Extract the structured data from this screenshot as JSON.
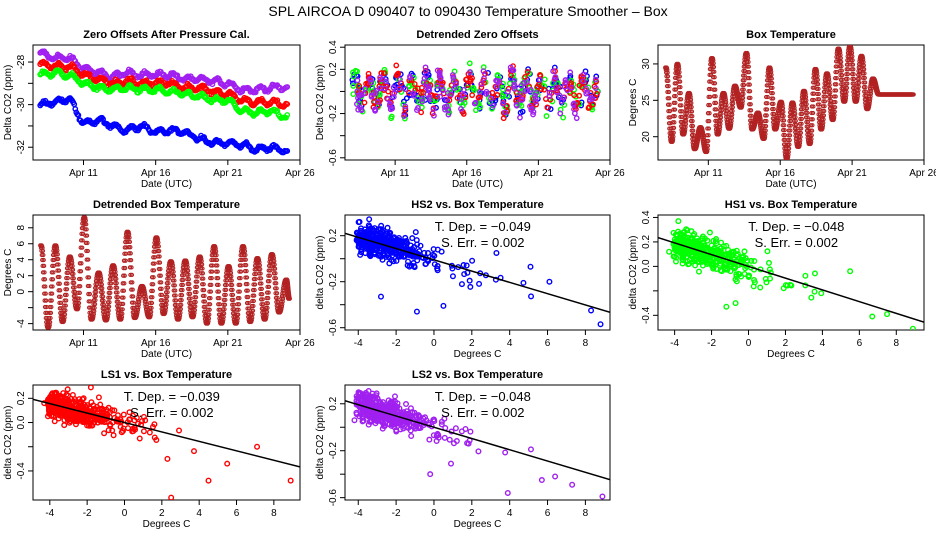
{
  "main_title": "SPL   AIRCOA D   090407 to 090430   Temperature Smoother – Box",
  "colors": {
    "HS2": "#0000ff",
    "HS1": "#00ff00",
    "LS1": "#ff0000",
    "LS2": "#a020f0",
    "box": "#b22222",
    "fit": "#000000"
  },
  "chart_data": [
    {
      "id": "zero-offsets",
      "type": "scatter",
      "title": "Zero Offsets After Pressure Cal.",
      "xlabel": "Date (UTC)",
      "ylabel": "Delta CO2 (ppm)",
      "xlim": [
        7.5,
        26
      ],
      "ylim": [
        -32.6,
        -27.2
      ],
      "xticks": [
        11,
        16,
        21,
        26
      ],
      "xtick_labels": [
        "Apr 11",
        "Apr 16",
        "Apr 21",
        "Apr 26"
      ],
      "yticks": [
        -32,
        -31,
        -30,
        -29,
        -28
      ],
      "ytick_labels": [
        "-32",
        "",
        "-30",
        "",
        "-28"
      ],
      "series": [
        {
          "name": "LS2",
          "color_key": "LS2",
          "x": [
            8,
            9,
            10,
            11,
            12,
            13,
            14,
            15,
            16,
            17,
            18,
            19,
            20,
            21,
            22,
            23,
            24,
            25.2
          ],
          "y": [
            -27.6,
            -27.8,
            -27.8,
            -28.3,
            -28.5,
            -28.7,
            -28.5,
            -28.6,
            -28.6,
            -28.6,
            -28.8,
            -28.8,
            -28.9,
            -29.0,
            -29.3,
            -29.3,
            -29.2,
            -29.2
          ]
        },
        {
          "name": "LS1",
          "color_key": "LS1",
          "x": [
            8,
            9,
            10,
            11,
            12,
            13,
            14,
            15,
            16,
            17,
            18,
            19,
            20,
            21,
            22,
            23,
            24,
            25.2
          ],
          "y": [
            -28.1,
            -28.2,
            -28.2,
            -28.6,
            -28.8,
            -29.0,
            -28.9,
            -29.0,
            -29.0,
            -29.0,
            -29.2,
            -29.2,
            -29.4,
            -29.5,
            -29.8,
            -29.9,
            -29.9,
            -30.0
          ]
        },
        {
          "name": "HS1",
          "color_key": "HS1",
          "x": [
            8,
            9,
            10,
            11,
            12,
            13,
            14,
            15,
            16,
            17,
            18,
            19,
            20,
            21,
            22,
            23,
            24,
            25.2
          ],
          "y": [
            -28.6,
            -28.5,
            -28.6,
            -29.0,
            -29.2,
            -29.3,
            -29.2,
            -29.3,
            -29.3,
            -29.4,
            -29.5,
            -29.6,
            -29.8,
            -29.8,
            -30.3,
            -30.4,
            -30.3,
            -30.6
          ]
        },
        {
          "name": "HS2",
          "color_key": "HS2",
          "x": [
            8,
            9,
            10,
            11,
            12,
            13,
            14,
            15,
            16,
            17,
            18,
            19,
            20,
            21,
            22,
            23,
            24,
            25.2
          ],
          "y": [
            -30.0,
            -29.9,
            -29.7,
            -30.9,
            -30.7,
            -31.0,
            -31.2,
            -31.0,
            -31.3,
            -31.2,
            -31.3,
            -31.6,
            -31.8,
            -31.8,
            -31.9,
            -32.1,
            -32.0,
            -32.2
          ]
        }
      ]
    },
    {
      "id": "detrended-zero-offsets",
      "type": "scatter",
      "title": "Detrended Zero Offsets",
      "xlabel": "Date (UTC)",
      "ylabel": "Delta CO2 (ppm)",
      "xlim": [
        7.5,
        26
      ],
      "ylim": [
        -0.62,
        0.42
      ],
      "xticks": [
        11,
        16,
        21,
        26
      ],
      "xtick_labels": [
        "Apr 11",
        "Apr 16",
        "Apr 21",
        "Apr 26"
      ],
      "yticks": [
        -0.6,
        -0.4,
        -0.2,
        0.0,
        0.2,
        0.4
      ],
      "ytick_labels": [
        "-0.6",
        "",
        "-0.2",
        "",
        "0.2",
        "0.4"
      ],
      "series": [
        {
          "name": "HS2",
          "color_key": "HS2",
          "range": [
            -0.4,
            0.3
          ]
        },
        {
          "name": "HS1",
          "color_key": "HS1",
          "range": [
            -0.45,
            0.38
          ]
        },
        {
          "name": "LS1",
          "color_key": "LS1",
          "range": [
            -0.5,
            0.3
          ]
        },
        {
          "name": "LS2",
          "color_key": "LS2",
          "range": [
            -0.57,
            0.34
          ]
        }
      ]
    },
    {
      "id": "box-temperature",
      "type": "line",
      "title": "Box Temperature",
      "xlabel": "Date (UTC)",
      "ylabel": "Degrees C",
      "xlim": [
        7.5,
        26
      ],
      "ylim": [
        16.8,
        32.6
      ],
      "xticks": [
        11,
        16,
        21,
        26
      ],
      "xtick_labels": [
        "Apr 11",
        "Apr 16",
        "Apr 21",
        "Apr 26"
      ],
      "yticks": [
        20,
        25,
        30
      ],
      "ytick_labels": [
        "20",
        "25",
        "30"
      ],
      "series": [
        {
          "name": "Box",
          "color_key": "box",
          "x": [
            8,
            8.4,
            8.8,
            9.2,
            9.6,
            10,
            10.4,
            10.8,
            11.2,
            11.6,
            12,
            12.4,
            12.8,
            13.2,
            13.6,
            14,
            14.4,
            14.8,
            15.2,
            15.6,
            16,
            16.4,
            16.8,
            17.2,
            17.6,
            18,
            18.4,
            18.8,
            19.2,
            19.6,
            20,
            20.4,
            20.8,
            21.2,
            21.6,
            22,
            22.4,
            22.8,
            23.2,
            23.6,
            24,
            24.4,
            24.8,
            25.2
          ],
          "y": [
            29.5,
            19.3,
            30.0,
            20.3,
            26.0,
            18.3,
            21.3,
            17.9,
            30.8,
            20.3,
            26.0,
            21.1,
            27.0,
            24.0,
            31.5,
            21.0,
            23.3,
            19.7,
            29.5,
            21.0,
            24.8,
            17.0,
            24.7,
            18.6,
            26.3,
            19.0,
            29.3,
            21.0,
            28.7,
            22.3,
            32.1,
            24.8,
            32.4,
            24.8,
            31.1,
            23.8,
            28.0,
            25.8,
            25.8,
            25.8,
            25.8,
            25.8,
            25.8,
            25.8
          ]
        }
      ]
    },
    {
      "id": "detrended-box-temperature",
      "type": "line",
      "title": "Detrended Box Temperature",
      "xlabel": "Date (UTC)",
      "ylabel": "Degrees C",
      "xlim": [
        7.5,
        26
      ],
      "ylim": [
        -4.8,
        9.6
      ],
      "xticks": [
        11,
        16,
        21,
        26
      ],
      "xtick_labels": [
        "Apr 11",
        "Apr 16",
        "Apr 21",
        "Apr 26"
      ],
      "yticks": [
        -4,
        -2,
        0,
        2,
        4,
        6,
        8
      ],
      "ytick_labels": [
        "-4",
        "",
        "0",
        "2",
        "4",
        "6",
        "8"
      ],
      "series": [
        {
          "name": "Box",
          "color_key": "box",
          "x": [
            8,
            8.5,
            9,
            9.5,
            10,
            10.5,
            11,
            11.5,
            12,
            12.5,
            13,
            13.5,
            14,
            14.5,
            15,
            15.5,
            16,
            16.5,
            17,
            17.5,
            18,
            18.5,
            19,
            19.5,
            20,
            20.5,
            21,
            21.5,
            22,
            22.5,
            23,
            23.5,
            24,
            24.5,
            25,
            25.2
          ],
          "y": [
            5.8,
            -4.5,
            5.8,
            -3.8,
            4.4,
            -2.2,
            9.3,
            -3.5,
            2.4,
            -3.6,
            3.3,
            -3.5,
            7.5,
            -3.3,
            0.7,
            -3.2,
            6.8,
            -2.8,
            3.8,
            -3.5,
            3.9,
            -3.2,
            4.4,
            -4.0,
            5.7,
            -4.0,
            3.2,
            -4.0,
            5.7,
            -3.8,
            4.2,
            -3.5,
            4.7,
            -2.6,
            1.5,
            -0.9
          ]
        }
      ]
    },
    {
      "id": "hs2-vs-box",
      "type": "scatter",
      "title": "HS2 vs. Box Temperature",
      "xlabel": "Degrees C",
      "ylabel": "delta CO2 (ppm)",
      "xlim": [
        -4.7,
        9.3
      ],
      "ylim": [
        -0.62,
        0.38
      ],
      "xticks": [
        -4,
        -2,
        0,
        2,
        4,
        6,
        8
      ],
      "xtick_labels": [
        "-4",
        "-2",
        "0",
        "2",
        "4",
        "6",
        "8"
      ],
      "yticks": [
        -0.6,
        -0.4,
        -0.2,
        0.0,
        0.2
      ],
      "ytick_labels": [
        "-0.6",
        "",
        "-0.2",
        "",
        "0.2"
      ],
      "color_key": "HS2",
      "fit": {
        "slope": -0.049,
        "intercept": -0.01
      },
      "annotation": [
        "T. Dep. =  −0.049",
        "S. Err. =  0.002"
      ],
      "spread": 0.09,
      "outliers": [
        [
          -2.8,
          -0.33
        ],
        [
          -0.9,
          -0.46
        ],
        [
          0.5,
          -0.41
        ],
        [
          8.3,
          -0.45
        ],
        [
          8.8,
          -0.57
        ],
        [
          6.1,
          -0.2
        ],
        [
          5.1,
          -0.07
        ],
        [
          3.3,
          0.05
        ]
      ]
    },
    {
      "id": "hs1-vs-box",
      "type": "scatter",
      "title": "HS1 vs. Box Temperature",
      "xlabel": "Degrees C",
      "ylabel": "delta CO2 (ppm)",
      "xlim": [
        -4.9,
        9.5
      ],
      "ylim": [
        -0.52,
        0.42
      ],
      "xticks": [
        -4,
        -2,
        0,
        2,
        4,
        6,
        8
      ],
      "xtick_labels": [
        "-4",
        "-2",
        "0",
        "2",
        "4",
        "6",
        "8"
      ],
      "yticks": [
        -0.4,
        -0.2,
        0.0,
        0.2,
        0.4
      ],
      "ytick_labels": [
        "-0.4",
        "",
        "0.0",
        "0.2",
        "0.4"
      ],
      "color_key": "HS1",
      "fit": {
        "slope": -0.048,
        "intercept": 0.0
      },
      "annotation": [
        "T. Dep. =  −0.048",
        "S. Err. =  0.002"
      ],
      "spread": 0.09,
      "outliers": [
        [
          -3.8,
          0.37
        ],
        [
          -4.3,
          0.12
        ],
        [
          -1.2,
          -0.33
        ],
        [
          -0.7,
          -0.3
        ],
        [
          6.7,
          -0.41
        ],
        [
          7.5,
          -0.39
        ],
        [
          8.9,
          -0.51
        ],
        [
          5.5,
          -0.04
        ]
      ]
    },
    {
      "id": "ls1-vs-box",
      "type": "scatter",
      "title": "LS1 vs. Box Temperature",
      "xlabel": "Degrees C",
      "ylabel": "delta CO2 (ppm)",
      "xlim": [
        -4.9,
        9.4
      ],
      "ylim": [
        -0.64,
        0.31
      ],
      "xticks": [
        -4,
        -2,
        0,
        2,
        4,
        6,
        8
      ],
      "xtick_labels": [
        "-4",
        "-2",
        "0",
        "2",
        "4",
        "6",
        "8"
      ],
      "yticks": [
        -0.4,
        -0.2,
        0.0,
        0.2
      ],
      "ytick_labels": [
        "-0.4",
        "",
        "0.0",
        "0.2"
      ],
      "color_key": "LS1",
      "fit": {
        "slope": -0.039,
        "intercept": 0.0
      },
      "annotation": [
        "T. Dep. =  −0.039",
        "S. Err. =  0.002"
      ],
      "spread": 0.08,
      "outliers": [
        [
          2.5,
          -0.62
        ],
        [
          4.5,
          -0.48
        ],
        [
          8.9,
          -0.48
        ],
        [
          5.5,
          -0.34
        ],
        [
          7.1,
          -0.2
        ],
        [
          -4.3,
          0.16
        ],
        [
          -1.8,
          0.29
        ],
        [
          2.3,
          -0.3
        ]
      ]
    },
    {
      "id": "ls2-vs-box",
      "type": "scatter",
      "title": "LS2 vs. Box Temperature",
      "xlabel": "Degrees C",
      "ylabel": "delta CO2 (ppm)",
      "xlim": [
        -4.7,
        9.3
      ],
      "ylim": [
        -0.62,
        0.36
      ],
      "xticks": [
        -4,
        -2,
        0,
        2,
        4,
        6,
        8
      ],
      "xtick_labels": [
        "-4",
        "-2",
        "0",
        "2",
        "4",
        "6",
        "8"
      ],
      "yticks": [
        -0.6,
        -0.4,
        -0.2,
        0.0,
        0.2
      ],
      "ytick_labels": [
        "-0.6",
        "",
        "-0.2",
        "",
        "0.2"
      ],
      "color_key": "LS2",
      "fit": {
        "slope": -0.048,
        "intercept": 0.0
      },
      "annotation": [
        "T. Dep. =  −0.048",
        "S. Err. =  0.002"
      ],
      "spread": 0.09,
      "outliers": [
        [
          -4.2,
          0.06
        ],
        [
          -0.2,
          -0.4
        ],
        [
          0.9,
          -0.31
        ],
        [
          3.9,
          -0.56
        ],
        [
          8.9,
          -0.59
        ],
        [
          7.3,
          -0.49
        ],
        [
          5.7,
          -0.45
        ],
        [
          6.4,
          -0.42
        ]
      ]
    }
  ]
}
